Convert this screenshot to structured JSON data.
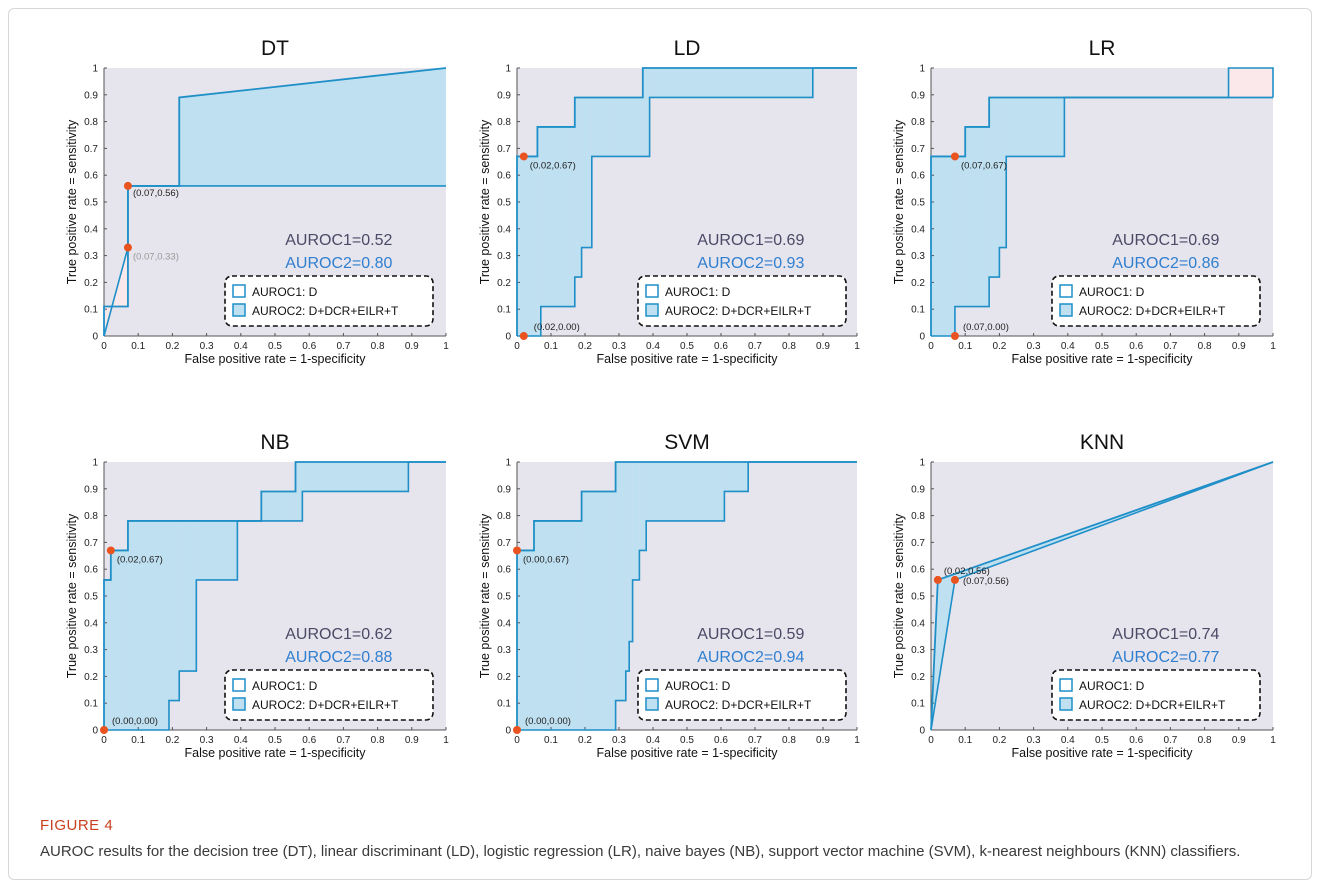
{
  "figure": {
    "label": "FIGURE 4",
    "caption": "AUROC results for the decision tree (DT), linear discriminant (LD), logistic regression (LR), naive bayes (NB), support vector machine (SVM), k-nearest neighbours (KNN) classifiers."
  },
  "colors": {
    "curve": "#1f8fc8",
    "gain_fill": "#bfe0f0",
    "loss_fill": "#fbe8ea",
    "background_fill": "#e6e4ec",
    "marker": "#e8531f",
    "auroc1_text": "#4a4a66",
    "auroc2_text": "#2f7fd0"
  },
  "chart_data": [
    {
      "type": "line",
      "title": "DT",
      "xlabel": "False positive rate = 1-specificity",
      "ylabel": "True positive rate = sensitivity",
      "xlim": [
        0,
        1
      ],
      "ylim": [
        0,
        1
      ],
      "xticks": [
        "0",
        "0.1",
        "0.2",
        "0.3",
        "0.4",
        "0.5",
        "0.6",
        "0.7",
        "0.8",
        "0.9",
        "1"
      ],
      "yticks": [
        "0",
        "0.1",
        "0.2",
        "0.3",
        "0.4",
        "0.5",
        "0.6",
        "0.7",
        "0.8",
        "0.9",
        "1"
      ],
      "series": [
        {
          "name": "AUROC1: D",
          "x": [
            0,
            0.07,
            0.07,
            1
          ],
          "y": [
            0,
            0.33,
            0.56,
            0.56
          ]
        },
        {
          "name": "AUROC2: D+DCR+EILR+T",
          "x": [
            0,
            0,
            0.07,
            0.07,
            0.22,
            0.22,
            1,
            1
          ],
          "y": [
            0,
            0.11,
            0.11,
            0.56,
            0.56,
            0.89,
            1,
            1
          ]
        }
      ],
      "points": [
        {
          "x": 0.07,
          "y": 0.56,
          "label": "(0.07,0.56)"
        },
        {
          "x": 0.07,
          "y": 0.33,
          "label": "(0.07,0.33)"
        }
      ],
      "auroc1": "AUROC1=0.52",
      "auroc2": "AUROC2=0.80"
    },
    {
      "type": "line",
      "title": "LD",
      "xlabel": "False positive rate = 1-specificity",
      "ylabel": "True positive rate = sensitivity",
      "xlim": [
        0,
        1
      ],
      "ylim": [
        0,
        1
      ],
      "xticks": [
        "0",
        "0.1",
        "0.2",
        "0.3",
        "0.4",
        "0.5",
        "0.6",
        "0.7",
        "0.8",
        "0.9",
        "1"
      ],
      "yticks": [
        "0",
        "0.1",
        "0.2",
        "0.3",
        "0.4",
        "0.5",
        "0.6",
        "0.7",
        "0.8",
        "0.9",
        "1"
      ],
      "series": [
        {
          "name": "AUROC1: D",
          "x": [
            0,
            0.07,
            0.07,
            0.17,
            0.17,
            0.19,
            0.19,
            0.22,
            0.22,
            0.39,
            0.39,
            0.87,
            0.87,
            1
          ],
          "y": [
            0,
            0,
            0.11,
            0.11,
            0.22,
            0.22,
            0.33,
            0.33,
            0.67,
            0.67,
            0.89,
            0.89,
            1,
            1
          ]
        },
        {
          "name": "AUROC2: D+DCR+EILR+T",
          "x": [
            0,
            0,
            0.06,
            0.06,
            0.17,
            0.17,
            0.28,
            0.28,
            0.37,
            0.37,
            1
          ],
          "y": [
            0,
            0.67,
            0.67,
            0.78,
            0.78,
            0.89,
            0.89,
            0.89,
            0.89,
            1,
            1
          ]
        }
      ],
      "points": [
        {
          "x": 0.02,
          "y": 0.67,
          "label": "(0.02,0.67)"
        },
        {
          "x": 0.02,
          "y": 0.0,
          "label": "(0.02,0.00)"
        }
      ],
      "auroc1": "AUROC1=0.69",
      "auroc2": "AUROC2=0.93"
    },
    {
      "type": "line",
      "title": "LR",
      "xlabel": "False positive rate = 1-specificity",
      "ylabel": "True positive rate = sensitivity",
      "xlim": [
        0,
        1
      ],
      "ylim": [
        0,
        1
      ],
      "xticks": [
        "0",
        "0.1",
        "0.2",
        "0.3",
        "0.4",
        "0.5",
        "0.6",
        "0.7",
        "0.8",
        "0.9",
        "1"
      ],
      "yticks": [
        "0",
        "0.1",
        "0.2",
        "0.3",
        "0.4",
        "0.5",
        "0.6",
        "0.7",
        "0.8",
        "0.9",
        "1"
      ],
      "series": [
        {
          "name": "AUROC1: D",
          "x": [
            0,
            0.07,
            0.07,
            0.17,
            0.17,
            0.2,
            0.2,
            0.22,
            0.22,
            0.39,
            0.39,
            0.87,
            0.87,
            1,
            1
          ],
          "y": [
            0,
            0,
            0.11,
            0.11,
            0.22,
            0.22,
            0.33,
            0.33,
            0.67,
            0.67,
            0.89,
            0.89,
            1,
            1,
            0.89
          ]
        },
        {
          "name": "AUROC2: D+DCR+EILR+T",
          "x": [
            0,
            0,
            0.1,
            0.1,
            0.17,
            0.17,
            1
          ],
          "y": [
            0,
            0.67,
            0.67,
            0.78,
            0.78,
            0.89,
            0.89
          ]
        }
      ],
      "points": [
        {
          "x": 0.07,
          "y": 0.67,
          "label": "(0.07,0.67)"
        },
        {
          "x": 0.07,
          "y": 0.0,
          "label": "(0.07,0.00)"
        }
      ],
      "auroc1": "AUROC1=0.69",
      "auroc2": "AUROC2=0.86"
    },
    {
      "type": "line",
      "title": "NB",
      "xlabel": "False positive rate = 1-specificity",
      "ylabel": "True positive rate = sensitivity",
      "xlim": [
        0,
        1
      ],
      "ylim": [
        0,
        1
      ],
      "xticks": [
        "0",
        "0.1",
        "0.2",
        "0.3",
        "0.4",
        "0.5",
        "0.6",
        "0.7",
        "0.8",
        "0.9",
        "1"
      ],
      "yticks": [
        "0",
        "0.1",
        "0.2",
        "0.3",
        "0.4",
        "0.5",
        "0.6",
        "0.7",
        "0.8",
        "0.9",
        "1"
      ],
      "series": [
        {
          "name": "AUROC1: D",
          "x": [
            0,
            0.19,
            0.19,
            0.22,
            0.22,
            0.27,
            0.27,
            0.39,
            0.39,
            0.58,
            0.58,
            0.89,
            0.89,
            1
          ],
          "y": [
            0,
            0,
            0.11,
            0.11,
            0.22,
            0.22,
            0.56,
            0.56,
            0.78,
            0.78,
            0.89,
            0.89,
            1,
            1
          ]
        },
        {
          "name": "AUROC2: D+DCR+EILR+T",
          "x": [
            0,
            0,
            0.02,
            0.02,
            0.07,
            0.07,
            0.46,
            0.46,
            0.56,
            0.56,
            1
          ],
          "y": [
            0,
            0.56,
            0.56,
            0.67,
            0.67,
            0.78,
            0.78,
            0.89,
            0.89,
            1,
            1
          ]
        }
      ],
      "points": [
        {
          "x": 0.02,
          "y": 0.67,
          "label": "(0.02,0.67)"
        },
        {
          "x": 0.0,
          "y": 0.0,
          "label": "(0.00,0.00)"
        }
      ],
      "auroc1": "AUROC1=0.62",
      "auroc2": "AUROC2=0.88"
    },
    {
      "type": "line",
      "title": "SVM",
      "xlabel": "False positive rate = 1-specificity",
      "ylabel": "True positive rate = sensitivity",
      "xlim": [
        0,
        1
      ],
      "ylim": [
        0,
        1
      ],
      "xticks": [
        "0",
        "0.1",
        "0.2",
        "0.3",
        "0.4",
        "0.5",
        "0.6",
        "0.7",
        "0.8",
        "0.9",
        "1"
      ],
      "yticks": [
        "0",
        "0.1",
        "0.2",
        "0.3",
        "0.4",
        "0.5",
        "0.6",
        "0.7",
        "0.8",
        "0.9",
        "1"
      ],
      "series": [
        {
          "name": "AUROC1: D",
          "x": [
            0,
            0.29,
            0.29,
            0.32,
            0.32,
            0.33,
            0.33,
            0.34,
            0.34,
            0.36,
            0.36,
            0.38,
            0.38,
            0.61,
            0.61,
            0.68,
            0.68,
            1
          ],
          "y": [
            0,
            0,
            0.11,
            0.11,
            0.22,
            0.22,
            0.33,
            0.33,
            0.56,
            0.56,
            0.67,
            0.67,
            0.78,
            0.78,
            0.89,
            0.89,
            1,
            1
          ]
        },
        {
          "name": "AUROC2: D+DCR+EILR+T",
          "x": [
            0,
            0,
            0.05,
            0.05,
            0.19,
            0.19,
            0.29,
            0.29,
            1
          ],
          "y": [
            0,
            0.67,
            0.67,
            0.78,
            0.78,
            0.89,
            0.89,
            1,
            1
          ]
        }
      ],
      "points": [
        {
          "x": 0.0,
          "y": 0.67,
          "label": "(0.00,0.67)"
        },
        {
          "x": 0.0,
          "y": 0.0,
          "label": "(0.00,0.00)"
        }
      ],
      "auroc1": "AUROC1=0.59",
      "auroc2": "AUROC2=0.94"
    },
    {
      "type": "line",
      "title": "KNN",
      "xlabel": "False positive rate = 1-specificity",
      "ylabel": "True positive rate = sensitivity",
      "xlim": [
        0,
        1
      ],
      "ylim": [
        0,
        1
      ],
      "xticks": [
        "0",
        "0.1",
        "0.2",
        "0.3",
        "0.4",
        "0.5",
        "0.6",
        "0.7",
        "0.8",
        "0.9",
        "1"
      ],
      "yticks": [
        "0",
        "0.1",
        "0.2",
        "0.3",
        "0.4",
        "0.5",
        "0.6",
        "0.7",
        "0.8",
        "0.9",
        "1"
      ],
      "series": [
        {
          "name": "AUROC1: D",
          "x": [
            0,
            0.07,
            1
          ],
          "y": [
            0,
            0.56,
            1
          ]
        },
        {
          "name": "AUROC2: D+DCR+EILR+T",
          "x": [
            0,
            0.02,
            1
          ],
          "y": [
            0,
            0.56,
            1
          ]
        }
      ],
      "points": [
        {
          "x": 0.02,
          "y": 0.56,
          "label": "(0.02,0.56)"
        },
        {
          "x": 0.07,
          "y": 0.56,
          "label": "(0.07,0.56)"
        }
      ],
      "auroc1": "AUROC1=0.74",
      "auroc2": "AUROC2=0.77"
    }
  ]
}
